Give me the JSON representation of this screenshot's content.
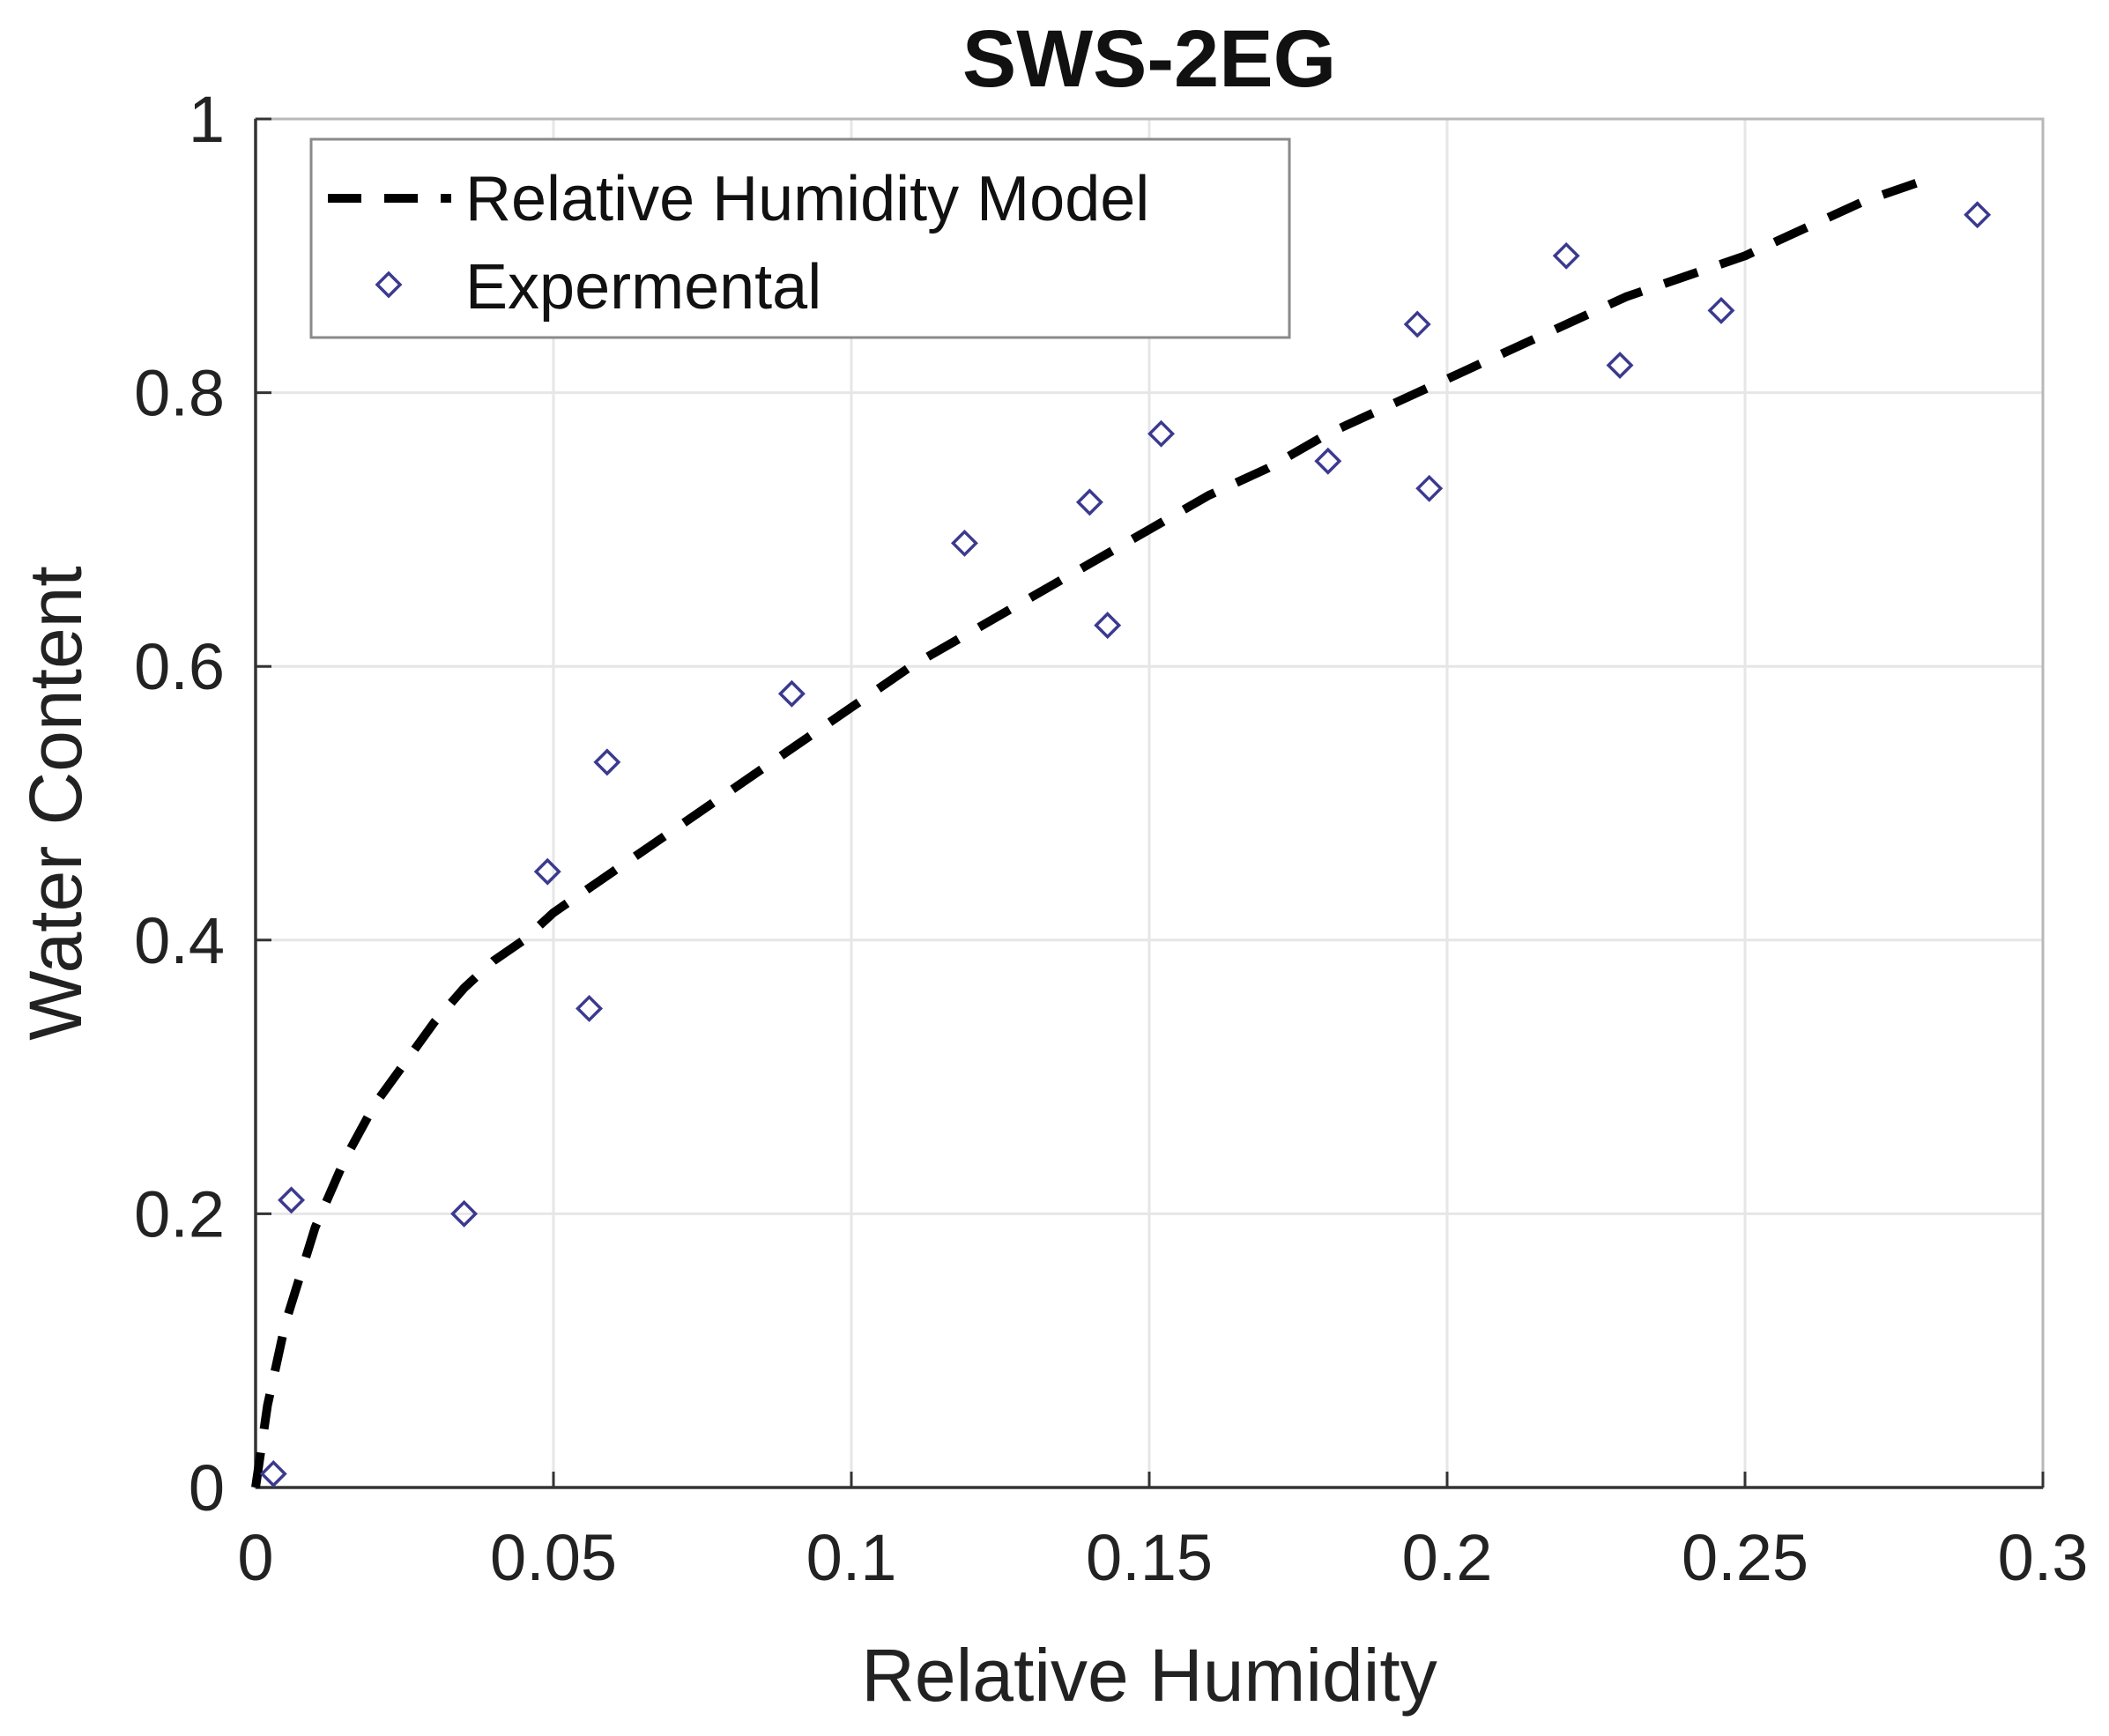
{
  "chart_data": {
    "type": "scatter",
    "title": "SWS-2EG",
    "xlabel": "Relative Humidity",
    "ylabel": "Water Content",
    "xlim": [
      0,
      0.3
    ],
    "ylim": [
      0,
      1
    ],
    "xticks": [
      0,
      0.05,
      0.1,
      0.15,
      0.2,
      0.25,
      0.3
    ],
    "xtick_labels": [
      "0",
      "0.05",
      "0.1",
      "0.15",
      "0.2",
      "0.25",
      "0.3"
    ],
    "yticks": [
      0,
      0.2,
      0.4,
      0.6,
      0.8,
      1
    ],
    "ytick_labels": [
      "0",
      "0.2",
      "0.4",
      "0.6",
      "0.8",
      "1"
    ],
    "grid": true,
    "legend_position": "top-left",
    "series": [
      {
        "name": "Relative Humidity Model",
        "style": "dashed-line",
        "color": "#000000",
        "x": [
          0,
          0.002,
          0.005,
          0.01,
          0.015,
          0.02,
          0.025,
          0.03,
          0.035,
          0.04,
          0.045,
          0.05,
          0.06,
          0.07,
          0.08,
          0.09,
          0.1,
          0.11,
          0.12,
          0.13,
          0.14,
          0.15,
          0.16,
          0.17,
          0.18,
          0.19,
          0.2,
          0.21,
          0.22,
          0.23,
          0.24,
          0.25,
          0.26,
          0.27,
          0.28
        ],
        "y": [
          0,
          0.06,
          0.12,
          0.19,
          0.24,
          0.28,
          0.31,
          0.34,
          0.365,
          0.385,
          0.4,
          0.42,
          0.45,
          0.48,
          0.51,
          0.54,
          0.57,
          0.6,
          0.625,
          0.65,
          0.675,
          0.7,
          0.725,
          0.745,
          0.77,
          0.79,
          0.81,
          0.83,
          0.85,
          0.87,
          0.885,
          0.9,
          0.92,
          0.94,
          0.955
        ]
      },
      {
        "name": "Expermental",
        "style": "diamond-markers",
        "color": "#3b3a8f",
        "x": [
          0.003,
          0.006,
          0.035,
          0.049,
          0.056,
          0.059,
          0.09,
          0.119,
          0.14,
          0.143,
          0.152,
          0.18,
          0.195,
          0.197,
          0.22,
          0.229,
          0.246,
          0.289
        ],
        "y": [
          0.01,
          0.21,
          0.2,
          0.45,
          0.35,
          0.53,
          0.58,
          0.69,
          0.72,
          0.63,
          0.77,
          0.75,
          0.85,
          0.73,
          0.9,
          0.82,
          0.86,
          0.93
        ]
      }
    ]
  }
}
